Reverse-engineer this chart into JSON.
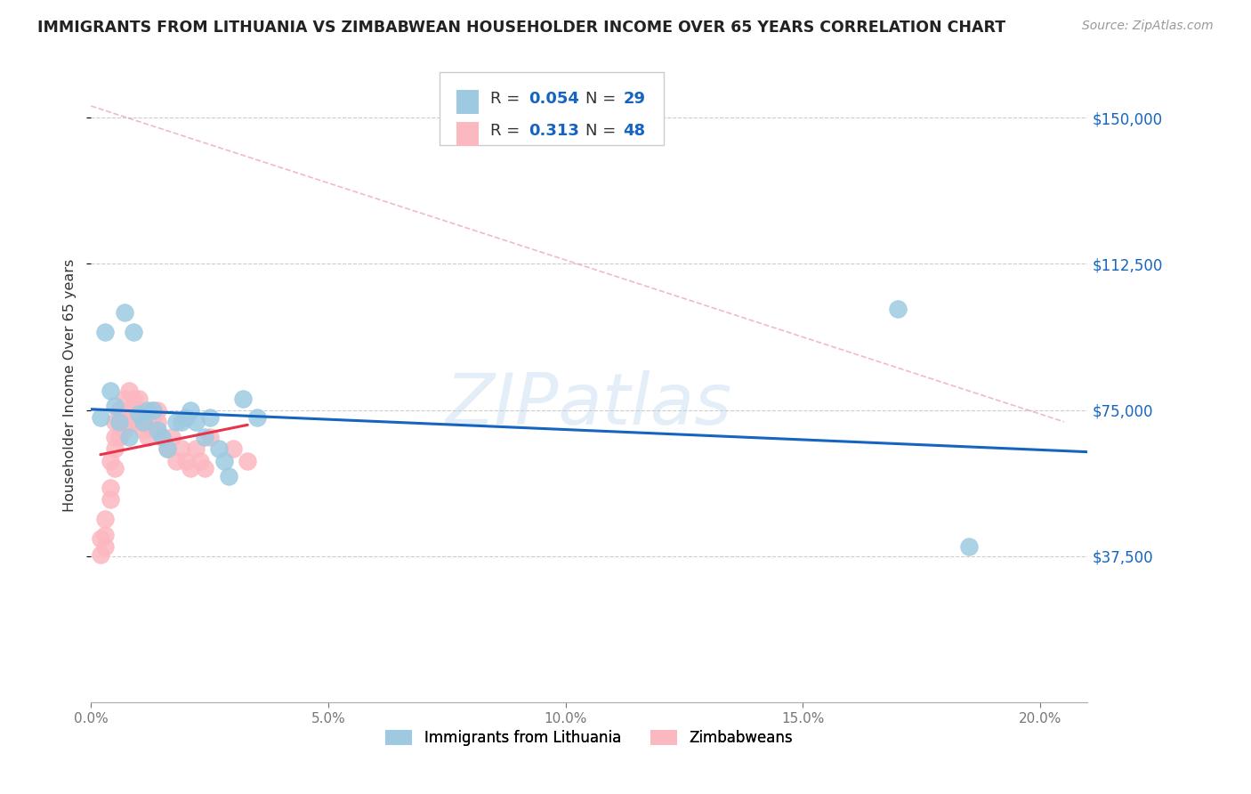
{
  "title": "IMMIGRANTS FROM LITHUANIA VS ZIMBABWEAN HOUSEHOLDER INCOME OVER 65 YEARS CORRELATION CHART",
  "source": "Source: ZipAtlas.com",
  "ylabel": "Householder Income Over 65 years",
  "xlabel_ticks": [
    "0.0%",
    "5.0%",
    "10.0%",
    "15.0%",
    "20.0%"
  ],
  "xlabel_vals": [
    0.0,
    0.05,
    0.1,
    0.15,
    0.2
  ],
  "ytick_labels": [
    "$37,500",
    "$75,000",
    "$112,500",
    "$150,000"
  ],
  "ytick_vals": [
    37500,
    75000,
    112500,
    150000
  ],
  "ylim": [
    0,
    162500
  ],
  "xlim": [
    0.0,
    0.21
  ],
  "legend_label1": "Immigrants from Lithuania",
  "legend_label2": "Zimbabweans",
  "r1": "0.054",
  "n1": "29",
  "r2": "0.313",
  "n2": "48",
  "watermark": "ZIPatlas",
  "blue_color": "#9ecae1",
  "pink_color": "#fcb8c0",
  "line_blue": "#1565c0",
  "line_pink": "#e8334a",
  "lithuania_x": [
    0.002,
    0.003,
    0.004,
    0.005,
    0.006,
    0.007,
    0.008,
    0.009,
    0.01,
    0.011,
    0.012,
    0.013,
    0.014,
    0.015,
    0.016,
    0.018,
    0.019,
    0.02,
    0.021,
    0.022,
    0.024,
    0.025,
    0.027,
    0.028,
    0.029,
    0.032,
    0.035,
    0.17,
    0.185
  ],
  "lithuania_y": [
    73000,
    95000,
    80000,
    76000,
    72000,
    100000,
    68000,
    95000,
    74000,
    72000,
    75000,
    75000,
    70000,
    68000,
    65000,
    72000,
    72000,
    73000,
    75000,
    72000,
    68000,
    73000,
    65000,
    62000,
    58000,
    78000,
    73000,
    101000,
    40000
  ],
  "zimbabwe_x": [
    0.002,
    0.002,
    0.003,
    0.003,
    0.003,
    0.004,
    0.004,
    0.004,
    0.005,
    0.005,
    0.005,
    0.005,
    0.006,
    0.006,
    0.006,
    0.007,
    0.007,
    0.008,
    0.008,
    0.008,
    0.009,
    0.009,
    0.009,
    0.01,
    0.01,
    0.01,
    0.011,
    0.011,
    0.012,
    0.012,
    0.013,
    0.013,
    0.013,
    0.014,
    0.014,
    0.015,
    0.016,
    0.017,
    0.018,
    0.019,
    0.02,
    0.021,
    0.022,
    0.023,
    0.024,
    0.025,
    0.03,
    0.033
  ],
  "zimbabwe_y": [
    38000,
    42000,
    40000,
    43000,
    47000,
    52000,
    55000,
    62000,
    60000,
    65000,
    68000,
    72000,
    68000,
    72000,
    75000,
    70000,
    78000,
    72000,
    75000,
    80000,
    72000,
    75000,
    78000,
    72000,
    75000,
    78000,
    70000,
    73000,
    68000,
    72000,
    70000,
    73000,
    75000,
    72000,
    75000,
    68000,
    65000,
    68000,
    62000,
    65000,
    62000,
    60000,
    65000,
    62000,
    60000,
    68000,
    65000,
    62000
  ],
  "dashed_line_x": [
    0.0,
    0.205
  ],
  "dashed_line_y": [
    153000,
    72000
  ]
}
